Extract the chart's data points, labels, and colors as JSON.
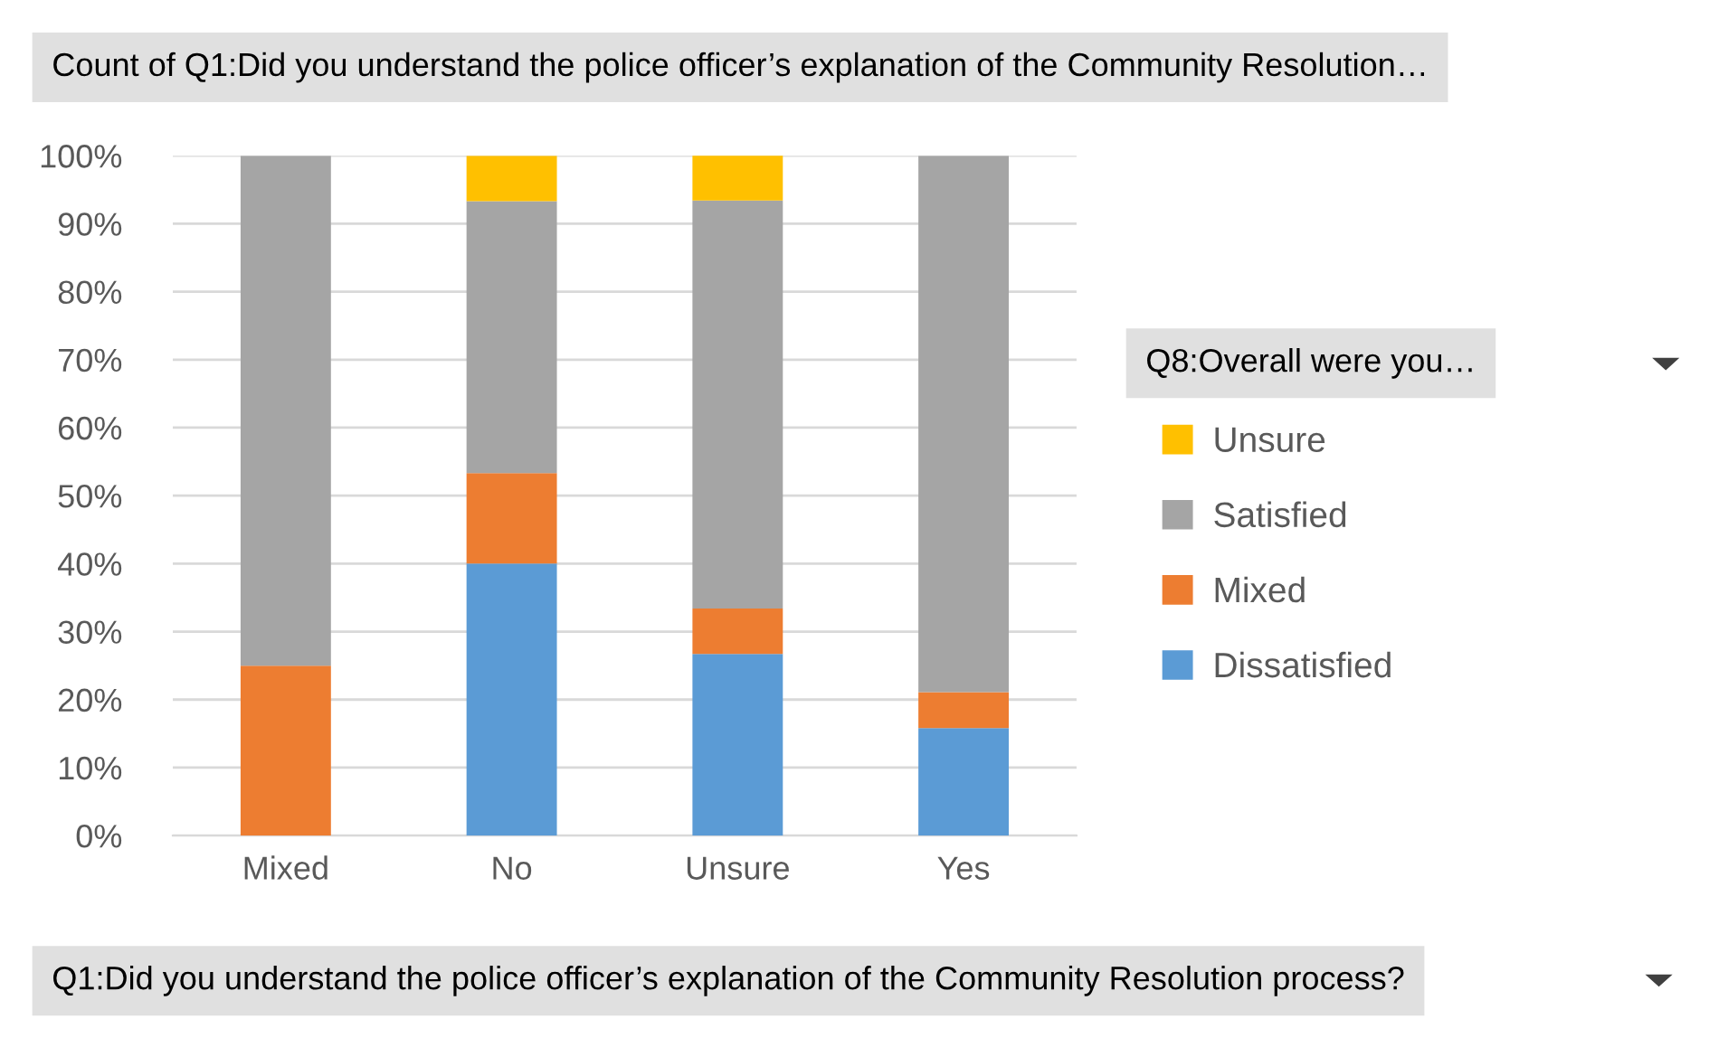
{
  "chart_data": {
    "type": "bar",
    "stacked": true,
    "title": "Count of Q1:Did you understand the police officer’s explanation of the Community Resolution…",
    "xlabel": "Q1:Did you understand the police officer’s explanation of the Community Resolution process?",
    "legend_title": "Q8:Overall were you…",
    "categories": [
      "Mixed",
      "No",
      "Unsure",
      "Yes"
    ],
    "series": [
      {
        "name": "Dissatisfied",
        "color": "#5b9bd5",
        "values": [
          0,
          40,
          26.7,
          15.8
        ]
      },
      {
        "name": "Mixed",
        "color": "#ed7d31",
        "values": [
          25,
          13.3,
          6.7,
          5.3
        ]
      },
      {
        "name": "Satisfied",
        "color": "#a5a5a5",
        "values": [
          75,
          40,
          60,
          78.9
        ]
      },
      {
        "name": "Unsure",
        "color": "#ffc000",
        "values": [
          0,
          6.7,
          6.7,
          0
        ]
      }
    ],
    "ylim": [
      0,
      100
    ],
    "yticks": [
      {
        "value": 0,
        "label": "0%"
      },
      {
        "value": 10,
        "label": "10%"
      },
      {
        "value": 20,
        "label": "20%"
      },
      {
        "value": 30,
        "label": "30%"
      },
      {
        "value": 40,
        "label": "40%"
      },
      {
        "value": 50,
        "label": "50%"
      },
      {
        "value": 60,
        "label": "60%"
      },
      {
        "value": 70,
        "label": "70%"
      },
      {
        "value": 80,
        "label": "80%"
      },
      {
        "value": 90,
        "label": "90%"
      },
      {
        "value": 100,
        "label": "100%"
      }
    ],
    "grid": "y",
    "legend": "right"
  }
}
